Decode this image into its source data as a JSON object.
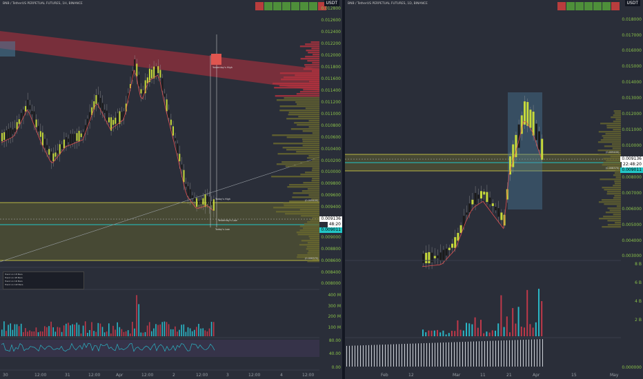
{
  "left_pane": {
    "title": "BNB / TetherUS PERPETUAL FUTURES, 1H, BINANCE",
    "currency": "USDT",
    "price_axis": [
      "0.012800",
      "0.012600",
      "0.012400",
      "0.012200",
      "0.012000",
      "0.011800",
      "0.011600",
      "0.011400",
      "0.011200",
      "0.011000",
      "0.010800",
      "0.010600",
      "0.010400",
      "0.010200",
      "0.010000",
      "0.009800",
      "0.009600",
      "0.009400",
      "0.009200",
      "0.009000",
      "0.008800",
      "0.008600",
      "0.008400",
      "0.008200",
      "0.008000"
    ],
    "current_price": "0.009136",
    "countdown": "48:20",
    "level_price": "0.009011",
    "volume_axis": [
      "400 M",
      "300 M",
      "200 M",
      "100 M"
    ],
    "oscillator_axis": [
      "80.00",
      "40.00",
      "0.00"
    ],
    "time_axis": [
      "30",
      "12:00",
      "31",
      "12:00",
      "Apr",
      "12:00",
      "2",
      "12:00",
      "3",
      "12:00",
      "4",
      "12:00"
    ],
    "annotations": {
      "yesterdays_high": "Yesterday's High",
      "todays_high": "Today's High",
      "yesterdays_low": "Yesterday's Low",
      "todays_low": "Today's Low",
      "upper_level": "(0.009400)",
      "lower_level": "(0.008375)"
    },
    "legend_rows": [
      "Trend on 1H Bars",
      "Trend on 4H Bars",
      "Trend on 1D Bars",
      "Trend on 1W Bars"
    ]
  },
  "right_pane": {
    "title": "BNB / TetherUS PERPETUAL FUTURES, 1D, BINANCE",
    "currency": "USDT",
    "price_axis": [
      "0.018000",
      "0.017000",
      "0.016000",
      "0.015000",
      "0.014000",
      "0.013000",
      "0.012000",
      "0.011000",
      "0.010000",
      "0.009000",
      "0.008000",
      "0.007000",
      "0.006000",
      "0.005000",
      "0.004000",
      "0.003000"
    ],
    "current_price": "0.009136",
    "countdown": "22:48:20",
    "level_price": "0.009011",
    "volume_axis": [
      "8 B",
      "6 B",
      "4 B",
      "2 B"
    ],
    "oscillator_axis": [
      "0.000000"
    ],
    "time_axis": [
      "Feb",
      "12",
      "Mar",
      "11",
      "21",
      "Apr",
      "15",
      "May"
    ],
    "annotations": {
      "upper_level": "(0.009400)",
      "lower_level": "(0.008375)"
    }
  },
  "colors": {
    "background": "#2a2e39",
    "axis_text": "#8bc34a",
    "bull": "#c6d93a",
    "bear": "#1b1b1b",
    "zone_red": "#b8323e",
    "zone_yellow": "#6b6a2e",
    "teal": "#22c7c7"
  }
}
